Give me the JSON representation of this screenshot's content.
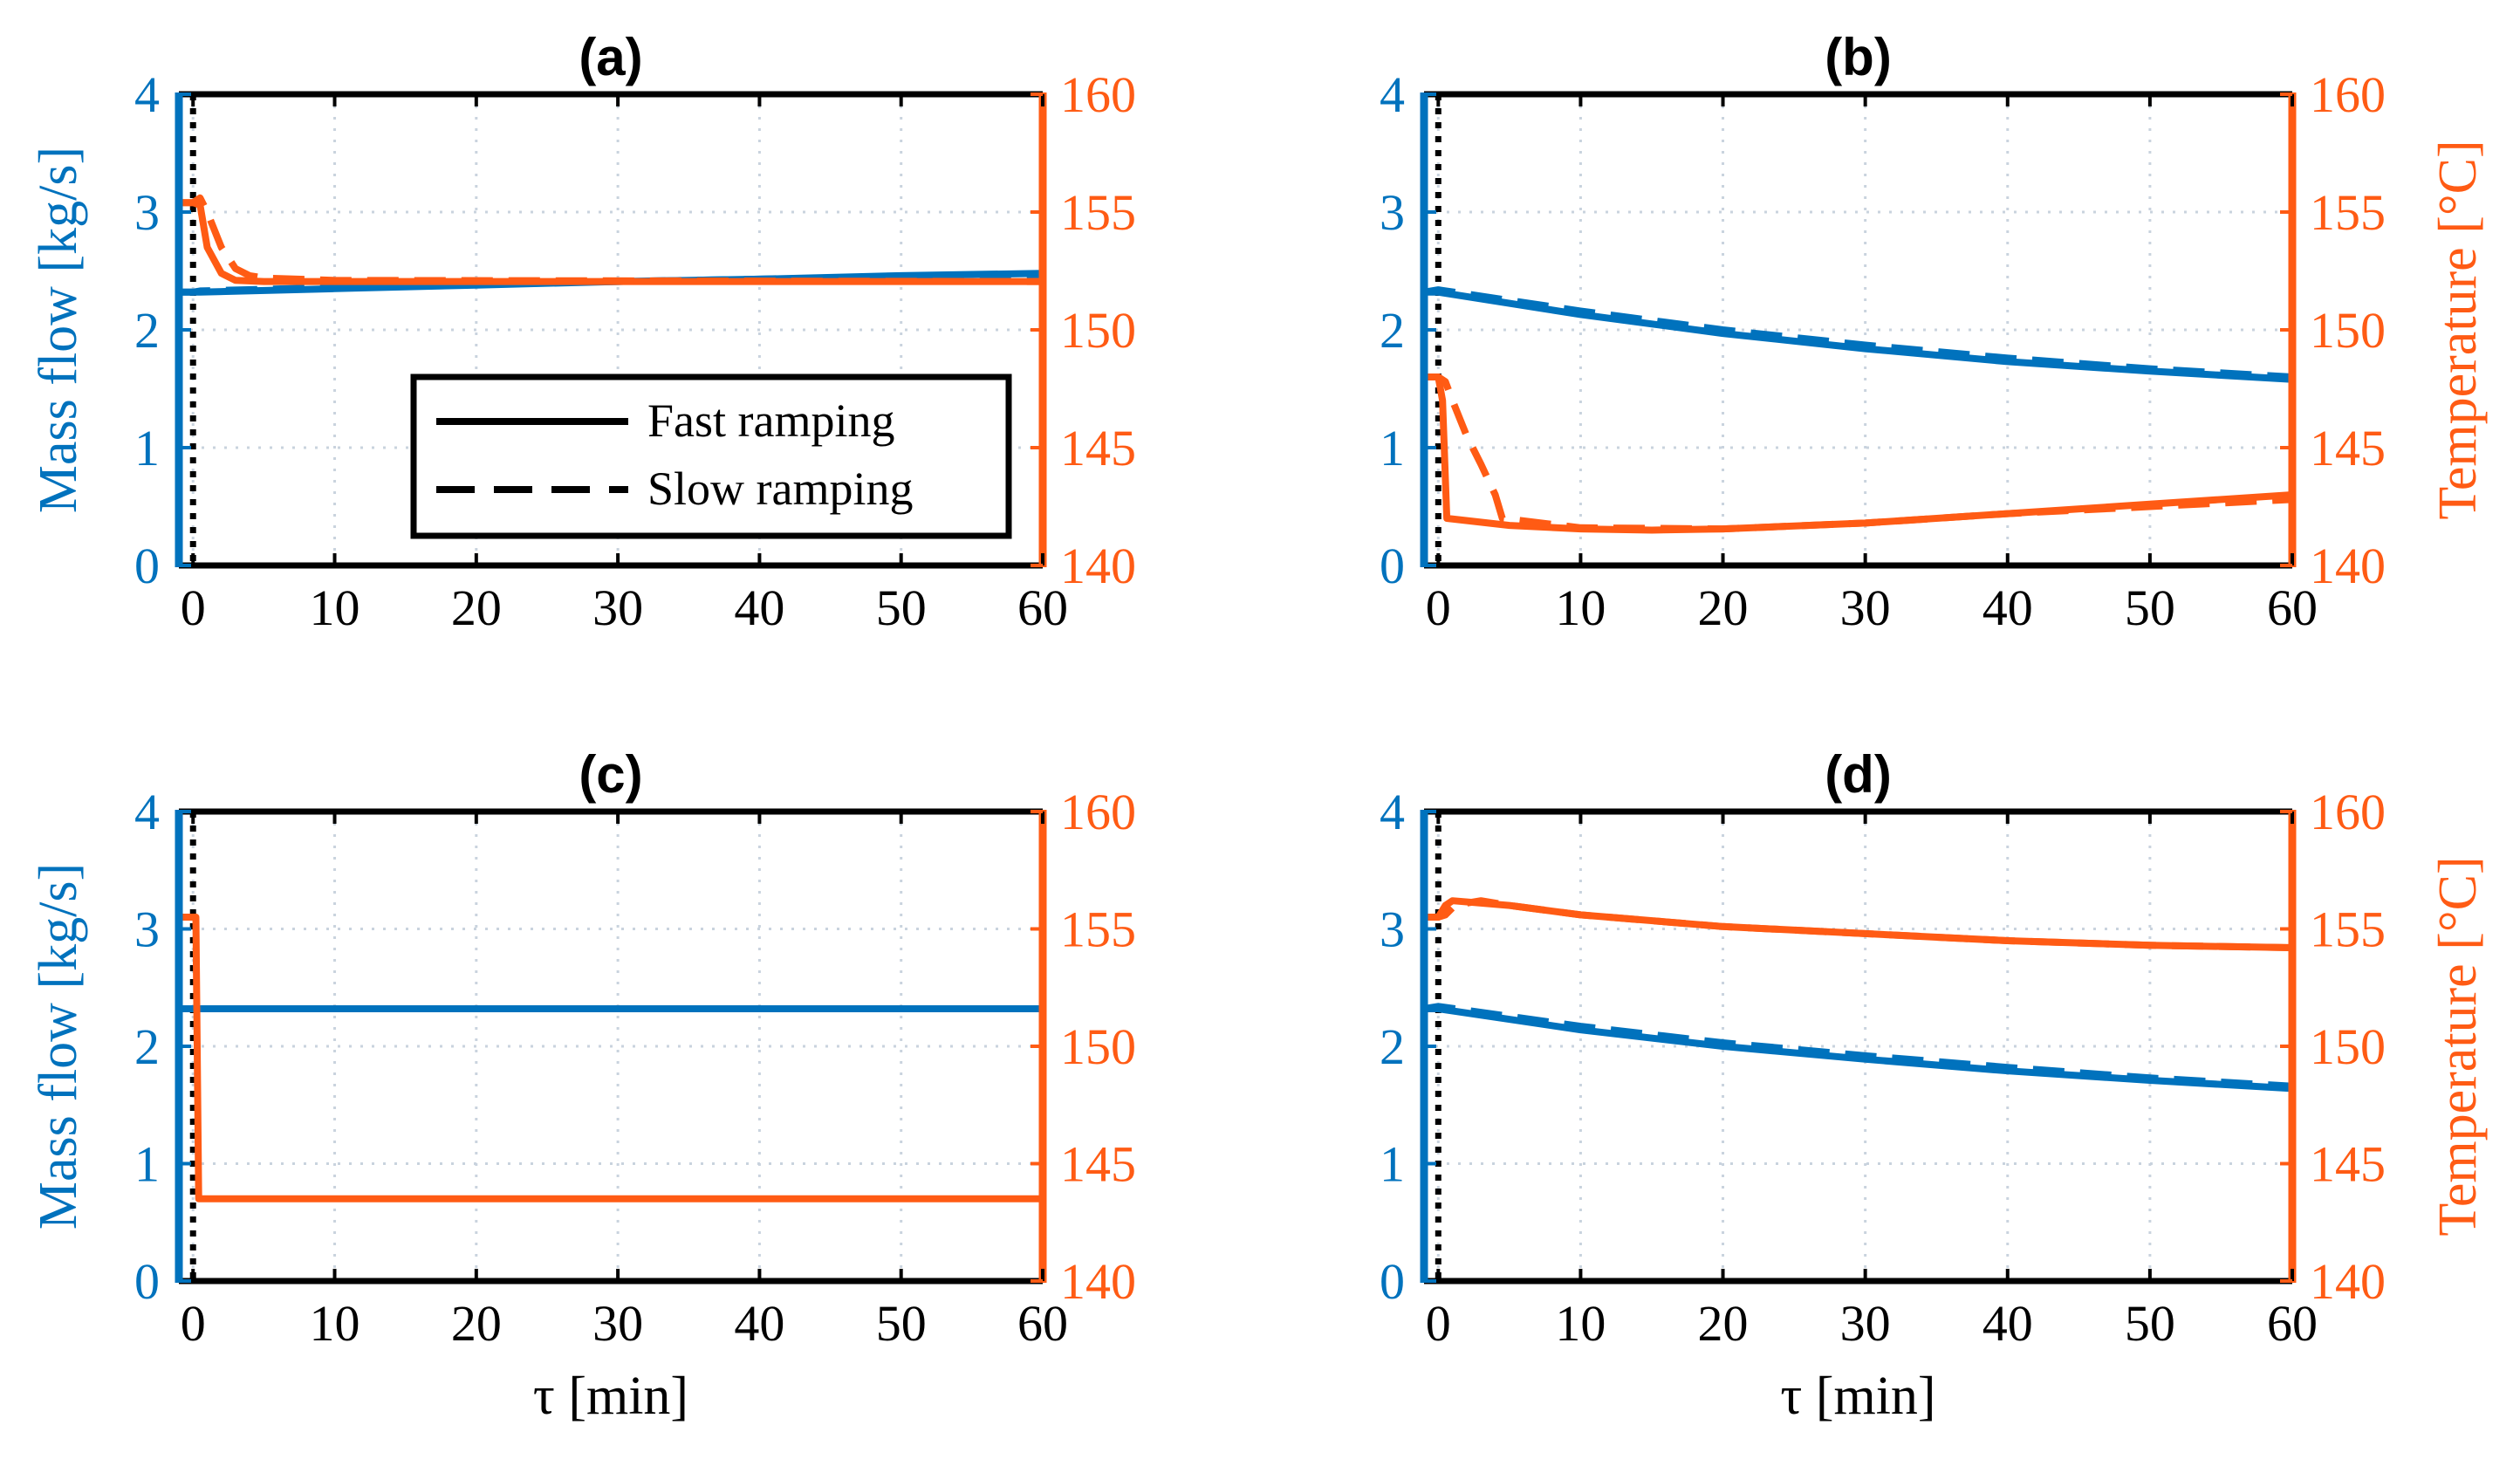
{
  "colors": {
    "blue": "#0072BD",
    "orange": "#FF5B14",
    "black": "#000000",
    "grid": "#C9D3DE"
  },
  "legend": {
    "entries": [
      {
        "label": "Fast ramping",
        "style": "solid"
      },
      {
        "label": "Slow ramping",
        "style": "dashed"
      }
    ],
    "placement": "lower-center of panel (a)"
  },
  "chart_data": [
    {
      "type": "line",
      "title": "(a)",
      "xlabel": "",
      "ylabel_left": "Mass flow [kg/s]",
      "ylabel_right": "",
      "xlim": [
        -1,
        60
      ],
      "ylim_left": [
        0,
        4
      ],
      "ylim_right": [
        140,
        160
      ],
      "xticks": [
        0,
        10,
        20,
        30,
        40,
        50,
        60
      ],
      "yticks_left": [
        0,
        1,
        2,
        3,
        4
      ],
      "yticks_right": [
        140,
        145,
        150,
        155,
        160
      ],
      "grid": true,
      "event_line_x": 0,
      "series": [
        {
          "axis": "left",
          "color": "blue",
          "style": "solid",
          "x": [
            -1,
            0,
            0.5,
            10,
            20,
            30,
            40,
            50,
            60
          ],
          "y": [
            2.32,
            2.32,
            2.32,
            2.35,
            2.38,
            2.41,
            2.43,
            2.46,
            2.48
          ]
        },
        {
          "axis": "left",
          "color": "blue",
          "style": "dashed",
          "x": [
            -1,
            0,
            0.5,
            10,
            20,
            30,
            40,
            50,
            60
          ],
          "y": [
            2.32,
            2.32,
            2.33,
            2.36,
            2.39,
            2.41,
            2.43,
            2.45,
            2.47
          ]
        },
        {
          "axis": "right",
          "color": "orange",
          "style": "solid",
          "x": [
            -1,
            0,
            0.5,
            1,
            2,
            3,
            5,
            10,
            20,
            30,
            40,
            50,
            60
          ],
          "y": [
            155.4,
            155.4,
            155.3,
            153.5,
            152.4,
            152.1,
            152.05,
            152.05,
            152.05,
            152.05,
            152.05,
            152.05,
            152.05
          ]
        },
        {
          "axis": "right",
          "color": "orange",
          "style": "dashed",
          "x": [
            -1,
            0,
            0.5,
            1,
            2,
            3,
            4,
            5,
            10,
            60
          ],
          "y": [
            155.4,
            155.4,
            155.6,
            155.0,
            153.5,
            152.6,
            152.3,
            152.2,
            152.1,
            152.05
          ]
        }
      ]
    },
    {
      "type": "line",
      "title": "(b)",
      "xlabel": "",
      "ylabel_left": "",
      "ylabel_right": "Temperature [°C]",
      "xlim": [
        -1,
        60
      ],
      "ylim_left": [
        0,
        4
      ],
      "ylim_right": [
        140,
        160
      ],
      "xticks": [
        0,
        10,
        20,
        30,
        40,
        50,
        60
      ],
      "yticks_left": [
        0,
        1,
        2,
        3,
        4
      ],
      "yticks_right": [
        140,
        145,
        150,
        155,
        160
      ],
      "grid": true,
      "event_line_x": 0,
      "series": [
        {
          "axis": "left",
          "color": "blue",
          "style": "solid",
          "x": [
            -1,
            0,
            10,
            20,
            30,
            40,
            50,
            60
          ],
          "y": [
            2.32,
            2.32,
            2.13,
            1.97,
            1.84,
            1.73,
            1.65,
            1.58
          ]
        },
        {
          "axis": "left",
          "color": "blue",
          "style": "dashed",
          "x": [
            -1,
            0,
            10,
            20,
            30,
            40,
            50,
            60
          ],
          "y": [
            2.32,
            2.34,
            2.16,
            2.0,
            1.87,
            1.76,
            1.67,
            1.6
          ]
        },
        {
          "axis": "right",
          "color": "orange",
          "style": "solid",
          "x": [
            -1,
            0,
            0.3,
            0.6,
            5,
            10,
            15,
            20,
            30,
            40,
            50,
            60
          ],
          "y": [
            148.0,
            148.0,
            147.0,
            142.0,
            141.7,
            141.55,
            141.5,
            141.55,
            141.8,
            142.2,
            142.6,
            143.0
          ]
        },
        {
          "axis": "right",
          "color": "orange",
          "style": "dashed",
          "x": [
            -1,
            0,
            0.5,
            1,
            2,
            3,
            4,
            4.5,
            10,
            20,
            30,
            40,
            50,
            60
          ],
          "y": [
            148.0,
            148.0,
            147.8,
            147.0,
            145.5,
            144.3,
            143.0,
            142.0,
            141.6,
            141.55,
            141.8,
            142.2,
            142.5,
            142.8
          ]
        }
      ]
    },
    {
      "type": "line",
      "title": "(c)",
      "xlabel": "τ [min]",
      "ylabel_left": "Mass flow [kg/s]",
      "ylabel_right": "",
      "xlim": [
        -1,
        60
      ],
      "ylim_left": [
        0,
        4
      ],
      "ylim_right": [
        140,
        160
      ],
      "xticks": [
        0,
        10,
        20,
        30,
        40,
        50,
        60
      ],
      "yticks_left": [
        0,
        1,
        2,
        3,
        4
      ],
      "yticks_right": [
        140,
        145,
        150,
        155,
        160
      ],
      "grid": true,
      "event_line_x": 0,
      "series": [
        {
          "axis": "left",
          "color": "blue",
          "style": "solid",
          "x": [
            -1,
            60
          ],
          "y": [
            2.32,
            2.32
          ]
        },
        {
          "axis": "right",
          "color": "orange",
          "style": "solid",
          "x": [
            -1,
            0,
            0.2,
            0.4,
            60
          ],
          "y": [
            155.5,
            155.5,
            155.5,
            143.5,
            143.5
          ]
        }
      ]
    },
    {
      "type": "line",
      "title": "(d)",
      "xlabel": "τ [min]",
      "ylabel_left": "",
      "ylabel_right": "Temperature [°C]",
      "xlim": [
        -1,
        60
      ],
      "ylim_left": [
        0,
        4
      ],
      "ylim_right": [
        140,
        160
      ],
      "xticks": [
        0,
        10,
        20,
        30,
        40,
        50,
        60
      ],
      "yticks_left": [
        0,
        1,
        2,
        3,
        4
      ],
      "yticks_right": [
        140,
        145,
        150,
        155,
        160
      ],
      "grid": true,
      "event_line_x": 0,
      "series": [
        {
          "axis": "left",
          "color": "blue",
          "style": "solid",
          "x": [
            -1,
            0,
            10,
            20,
            30,
            40,
            50,
            60
          ],
          "y": [
            2.32,
            2.32,
            2.14,
            2.0,
            1.89,
            1.79,
            1.71,
            1.64
          ]
        },
        {
          "axis": "left",
          "color": "blue",
          "style": "dashed",
          "x": [
            -1,
            0,
            10,
            20,
            30,
            40,
            50,
            60
          ],
          "y": [
            2.32,
            2.34,
            2.17,
            2.03,
            1.92,
            1.82,
            1.73,
            1.66
          ]
        },
        {
          "axis": "right",
          "color": "orange",
          "style": "solid",
          "x": [
            -1,
            0,
            0.5,
            1,
            5,
            10,
            20,
            30,
            40,
            50,
            60
          ],
          "y": [
            155.5,
            155.5,
            156.0,
            156.2,
            156.0,
            155.6,
            155.1,
            154.8,
            154.5,
            154.3,
            154.2
          ]
        },
        {
          "axis": "right",
          "color": "orange",
          "style": "dashed",
          "x": [
            -1,
            0,
            0.5,
            1,
            2,
            3,
            5,
            10,
            20,
            30,
            40,
            50,
            60
          ],
          "y": [
            155.5,
            155.5,
            155.6,
            155.9,
            156.1,
            156.2,
            156.0,
            155.6,
            155.1,
            154.8,
            154.5,
            154.3,
            154.2
          ]
        }
      ]
    }
  ]
}
